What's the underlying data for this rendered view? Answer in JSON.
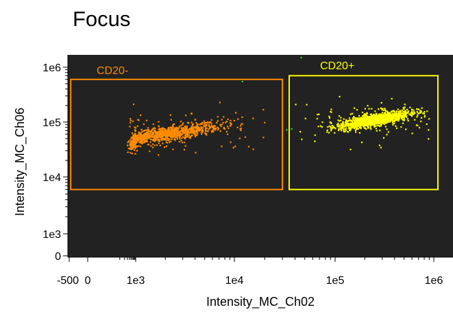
{
  "chart_data": {
    "type": "scatter",
    "title": "Focus",
    "xlabel": "Intensity_MC_Ch02",
    "ylabel": "Intensity_MC_Ch06",
    "x_scale": "biexponential",
    "y_scale": "biexponential",
    "x_ticks": [
      "-500",
      "0",
      "1e3",
      "1e4",
      "1e5",
      "1e6"
    ],
    "y_ticks": [
      "0",
      "1e3",
      "1e4",
      "1e5",
      "1e6"
    ],
    "plot_background": "#222222",
    "grid": false,
    "gates": [
      {
        "name": "CD20-",
        "color": "#ff8c00",
        "x_range": [
          -300,
          30000
        ],
        "y_range": [
          6000,
          600000
        ]
      },
      {
        "name": "CD20+",
        "color": "#ffff00",
        "x_range": [
          35000,
          1100000
        ],
        "y_range": [
          6000,
          700000
        ]
      }
    ],
    "series": [
      {
        "name": "CD20-",
        "color": "#ff8c00",
        "cluster_center": [
          2000,
          60000
        ],
        "approx_range_x": [
          300,
          20000
        ],
        "approx_range_y": [
          25000,
          500000
        ]
      },
      {
        "name": "CD20+",
        "color": "#ffff00",
        "cluster_center": [
          250000,
          110000
        ],
        "approx_range_x": [
          40000,
          900000
        ],
        "approx_range_y": [
          30000,
          300000
        ]
      },
      {
        "name": "",
        "color": "#22dd22",
        "points": [
          [
            12000,
            550000
          ],
          [
            46000,
            1500000
          ],
          [
            37000,
            75000
          ],
          [
            33000,
            72000
          ]
        ]
      }
    ]
  }
}
